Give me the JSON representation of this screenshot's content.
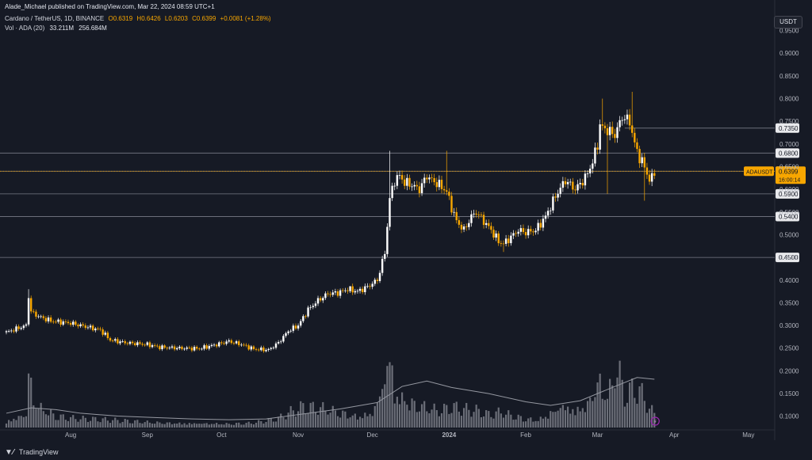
{
  "header": {
    "byline": "Alade_Michael published on TradingView.com, Mar 22, 2024 08:59 UTC+1",
    "symbol_line": "Cardano / TetherUS, 1D, BINANCE",
    "ohlc": {
      "o": "O0.6319",
      "h": "H0.6426",
      "l": "L0.6203",
      "c": "C0.6399",
      "chg": "+0.0081 (+1.28%)"
    },
    "volume_label": "Vol · ADA (20)",
    "volume_value": "33.211M",
    "volume_ma": "256.684M"
  },
  "currency_button": "USDT",
  "logo_text": "TradingView",
  "colors": {
    "background": "#161a25",
    "candle_up": "#ffffff",
    "candle_down": "#f7a600",
    "volume_bar": "#b2b5be",
    "volume_ma": "#9598a1",
    "level_line": "#787b86",
    "current_price_line": "#f7a600"
  },
  "chart_data": {
    "type": "candlestick",
    "symbol": "ADAUSDT",
    "y_axis": {
      "min": 0.075,
      "max": 0.965,
      "ticks": [
        "0.9500",
        "0.9000",
        "0.8500",
        "0.8000",
        "0.7500",
        "0.7000",
        "0.6500",
        "0.6000",
        "0.5500",
        "0.5000",
        "0.4500",
        "0.4000",
        "0.3500",
        "0.3000",
        "0.2500",
        "0.2000",
        "0.1500",
        "0.1000"
      ]
    },
    "x_axis": {
      "labels": [
        {
          "label": "Aug",
          "day": 26
        },
        {
          "label": "Sep",
          "day": 57
        },
        {
          "label": "Oct",
          "day": 87
        },
        {
          "label": "Nov",
          "day": 118
        },
        {
          "label": "Dec",
          "day": 148
        },
        {
          "label": "2024",
          "day": 179
        },
        {
          "label": "Feb",
          "day": 210
        },
        {
          "label": "Mar",
          "day": 239
        },
        {
          "label": "Apr",
          "day": 270
        },
        {
          "label": "May",
          "day": 300
        }
      ],
      "day_span": 310
    },
    "current_price": {
      "label": "ADAUSDT",
      "value": "0.6399",
      "countdown": "16:00:14"
    },
    "levels": [
      {
        "value": "0.7350",
        "price": 0.735
      },
      {
        "value": "0.6800",
        "price": 0.68
      },
      {
        "value": "0.6400",
        "price": 0.64
      },
      {
        "value": "0.5900",
        "price": 0.59
      },
      {
        "value": "0.5400",
        "price": 0.54
      },
      {
        "value": "0.4500",
        "price": 0.45
      }
    ],
    "price_path": [
      [
        0,
        0.285
      ],
      [
        8,
        0.3
      ],
      [
        9,
        0.365
      ],
      [
        10,
        0.33
      ],
      [
        13,
        0.32
      ],
      [
        18,
        0.31
      ],
      [
        26,
        0.305
      ],
      [
        30,
        0.3
      ],
      [
        38,
        0.29
      ],
      [
        42,
        0.268
      ],
      [
        48,
        0.262
      ],
      [
        57,
        0.258
      ],
      [
        62,
        0.252
      ],
      [
        70,
        0.25
      ],
      [
        78,
        0.249
      ],
      [
        85,
        0.258
      ],
      [
        90,
        0.265
      ],
      [
        95,
        0.258
      ],
      [
        100,
        0.248
      ],
      [
        106,
        0.246
      ],
      [
        110,
        0.262
      ],
      [
        114,
        0.288
      ],
      [
        118,
        0.3
      ],
      [
        122,
        0.335
      ],
      [
        126,
        0.355
      ],
      [
        130,
        0.37
      ],
      [
        134,
        0.372
      ],
      [
        138,
        0.38
      ],
      [
        142,
        0.375
      ],
      [
        146,
        0.385
      ],
      [
        150,
        0.4
      ],
      [
        153,
        0.46
      ],
      [
        155,
        0.58
      ],
      [
        157,
        0.62
      ],
      [
        159,
        0.63
      ],
      [
        161,
        0.615
      ],
      [
        163,
        0.612
      ],
      [
        167,
        0.6
      ],
      [
        170,
        0.63
      ],
      [
        172,
        0.62
      ],
      [
        175,
        0.61
      ],
      [
        178,
        0.595
      ],
      [
        180,
        0.56
      ],
      [
        182,
        0.53
      ],
      [
        185,
        0.51
      ],
      [
        188,
        0.54
      ],
      [
        190,
        0.55
      ],
      [
        193,
        0.53
      ],
      [
        196,
        0.51
      ],
      [
        199,
        0.485
      ],
      [
        201,
        0.48
      ],
      [
        204,
        0.495
      ],
      [
        207,
        0.51
      ],
      [
        210,
        0.505
      ],
      [
        214,
        0.51
      ],
      [
        218,
        0.54
      ],
      [
        222,
        0.585
      ],
      [
        226,
        0.62
      ],
      [
        230,
        0.6
      ],
      [
        234,
        0.625
      ],
      [
        237,
        0.66
      ],
      [
        239,
        0.7
      ],
      [
        240,
        0.74
      ],
      [
        243,
        0.73
      ],
      [
        246,
        0.72
      ],
      [
        249,
        0.76
      ],
      [
        252,
        0.75
      ],
      [
        254,
        0.7
      ],
      [
        256,
        0.67
      ],
      [
        258,
        0.65
      ],
      [
        260,
        0.62
      ],
      [
        261,
        0.625
      ],
      [
        262,
        0.64
      ]
    ],
    "spikes": [
      [
        9,
        0.38,
        "h"
      ],
      [
        139,
        0.387,
        "h"
      ],
      [
        155,
        0.685,
        "h"
      ],
      [
        178,
        0.685,
        "h"
      ],
      [
        182,
        0.56,
        "h"
      ],
      [
        201,
        0.462,
        "l"
      ],
      [
        241,
        0.8,
        "h"
      ],
      [
        243,
        0.59,
        "l"
      ],
      [
        253,
        0.815,
        "h"
      ],
      [
        258,
        0.575,
        "l"
      ]
    ],
    "volume": {
      "min": 0,
      "max": 310,
      "peaks": [
        [
          0,
          25
        ],
        [
          8,
          55
        ],
        [
          9,
          215
        ],
        [
          12,
          90
        ],
        [
          20,
          45
        ],
        [
          28,
          35
        ],
        [
          40,
          30
        ],
        [
          50,
          25
        ],
        [
          60,
          20
        ],
        [
          70,
          18
        ],
        [
          80,
          17
        ],
        [
          90,
          15
        ],
        [
          100,
          18
        ],
        [
          110,
          35
        ],
        [
          115,
          60
        ],
        [
          120,
          80
        ],
        [
          128,
          75
        ],
        [
          135,
          60
        ],
        [
          142,
          45
        ],
        [
          148,
          60
        ],
        [
          152,
          160
        ],
        [
          155,
          310
        ],
        [
          157,
          140
        ],
        [
          160,
          120
        ],
        [
          165,
          95
        ],
        [
          170,
          80
        ],
        [
          175,
          65
        ],
        [
          180,
          80
        ],
        [
          185,
          70
        ],
        [
          190,
          65
        ],
        [
          195,
          50
        ],
        [
          200,
          60
        ],
        [
          205,
          45
        ],
        [
          210,
          35
        ],
        [
          215,
          30
        ],
        [
          220,
          60
        ],
        [
          225,
          90
        ],
        [
          230,
          70
        ],
        [
          235,
          95
        ],
        [
          238,
          160
        ],
        [
          240,
          180
        ],
        [
          243,
          120
        ],
        [
          247,
          240
        ],
        [
          250,
          130
        ],
        [
          253,
          150
        ],
        [
          256,
          145
        ],
        [
          259,
          90
        ],
        [
          262,
          50
        ]
      ],
      "ma_points": [
        [
          0,
          40
        ],
        [
          10,
          55
        ],
        [
          20,
          50
        ],
        [
          30,
          40
        ],
        [
          45,
          32
        ],
        [
          60,
          28
        ],
        [
          75,
          24
        ],
        [
          90,
          22
        ],
        [
          105,
          24
        ],
        [
          120,
          38
        ],
        [
          135,
          52
        ],
        [
          150,
          70
        ],
        [
          160,
          115
        ],
        [
          170,
          130
        ],
        [
          180,
          112
        ],
        [
          195,
          95
        ],
        [
          210,
          72
        ],
        [
          220,
          62
        ],
        [
          232,
          75
        ],
        [
          245,
          112
        ],
        [
          255,
          140
        ],
        [
          262,
          135
        ]
      ]
    }
  }
}
